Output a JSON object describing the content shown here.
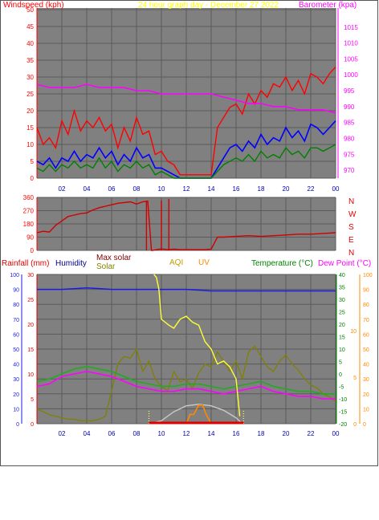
{
  "colors": {
    "plot_bg": "#808080",
    "grid": "#5a5a5a",
    "frame": "#4d4d4d",
    "gust": "#ff0000",
    "wind_avg": "#008000",
    "wind_10min": "#0000ff",
    "barometer": "#ff00ff",
    "direction": "#d00000",
    "title_yellow": "#ffff00",
    "humidity": "#1a1ae6",
    "temperature": "#22aa22",
    "dewpoint": "#ff00ff",
    "solar": "#808000",
    "max_solar": "#c8c8c8",
    "aqi": "#ffff33",
    "uv": "#ff8800",
    "rain_axis": "#e00000",
    "right_axis_green": "#008000",
    "right_axis_orange": "#ff8800"
  },
  "chart_data": [
    {
      "type": "line",
      "id": "wind",
      "title": "24 hour graph day - December 27 2022",
      "ylabel_left": "Windspeed (kph)",
      "ylabel_right": "Barometer (kpa)",
      "yticks_left": [
        "0",
        "5",
        "10",
        "15",
        "20",
        "25",
        "30",
        "35",
        "40",
        "45",
        "50"
      ],
      "yticks_right": [
        "970",
        "975",
        "980",
        "985",
        "990",
        "995",
        "1000",
        "1005",
        "1010",
        "1015"
      ],
      "ylim_left": [
        0,
        50
      ],
      "ylim_right": [
        967.5,
        1021
      ],
      "xticks": [
        "02",
        "04",
        "06",
        "08",
        "10",
        "12",
        "14",
        "16",
        "18",
        "20",
        "22",
        "00"
      ],
      "xlim": [
        0,
        24
      ],
      "grid": true,
      "series": [
        {
          "key": "gust",
          "x": [
            0,
            0.5,
            1,
            1.5,
            2,
            2.5,
            3,
            3.5,
            4,
            4.5,
            5,
            5.5,
            6,
            6.5,
            7,
            7.5,
            8,
            8.5,
            9,
            9.5,
            10,
            10.5,
            11,
            11.5,
            12,
            12.5,
            13,
            13.5,
            14,
            14.5,
            15,
            15.5,
            16,
            16.5,
            17,
            17.5,
            18,
            18.5,
            19,
            19.5,
            20,
            20.5,
            21,
            21.5,
            22,
            22.5,
            23,
            23.5,
            24
          ],
          "values": [
            15,
            10,
            12,
            9,
            17,
            13,
            20,
            14,
            17,
            15,
            18,
            14,
            16,
            9,
            15,
            11,
            18,
            13,
            14,
            7,
            8,
            5,
            4,
            1,
            1,
            1,
            1,
            1,
            1,
            15,
            18,
            21,
            22,
            19,
            25,
            22,
            26,
            24,
            28,
            27,
            30,
            26,
            29,
            25,
            31,
            30,
            28,
            31,
            33
          ]
        },
        {
          "key": "wind_10min",
          "x": [
            0,
            0.5,
            1,
            1.5,
            2,
            2.5,
            3,
            3.5,
            4,
            4.5,
            5,
            5.5,
            6,
            6.5,
            7,
            7.5,
            8,
            8.5,
            9,
            9.5,
            10,
            10.5,
            11,
            11.5,
            12,
            12.5,
            13,
            13.5,
            14,
            14.5,
            15,
            15.5,
            16,
            16.5,
            17,
            17.5,
            18,
            18.5,
            19,
            19.5,
            20,
            20.5,
            21,
            21.5,
            22,
            22.5,
            23,
            23.5,
            24
          ],
          "values": [
            5,
            4,
            6,
            3,
            6,
            5,
            8,
            5,
            7,
            6,
            9,
            6,
            8,
            4,
            7,
            5,
            9,
            6,
            7,
            3,
            3,
            2,
            1,
            0,
            0,
            0,
            0,
            0,
            0,
            3,
            6,
            9,
            10,
            8,
            11,
            9,
            13,
            10,
            12,
            11,
            15,
            12,
            14,
            11,
            16,
            15,
            13,
            15,
            17
          ]
        },
        {
          "key": "wind_avg",
          "x": [
            0,
            0.5,
            1,
            1.5,
            2,
            2.5,
            3,
            3.5,
            4,
            4.5,
            5,
            5.5,
            6,
            6.5,
            7,
            7.5,
            8,
            8.5,
            9,
            9.5,
            10,
            10.5,
            11,
            11.5,
            12,
            12.5,
            13,
            13.5,
            14,
            14.5,
            15,
            15.5,
            16,
            16.5,
            17,
            17.5,
            18,
            18.5,
            19,
            19.5,
            20,
            20.5,
            21,
            21.5,
            22,
            22.5,
            23,
            23.5,
            24
          ],
          "values": [
            3,
            2,
            4,
            2,
            4,
            3,
            5,
            3,
            4,
            3,
            6,
            3,
            5,
            2,
            4,
            3,
            5,
            3,
            4,
            1,
            2,
            1,
            0,
            0,
            0,
            0,
            0,
            0,
            0,
            2,
            4,
            5,
            6,
            5,
            7,
            5,
            8,
            6,
            7,
            6,
            9,
            7,
            8,
            6,
            9,
            9,
            8,
            9,
            10
          ]
        },
        {
          "key": "barometer",
          "axis": "right",
          "x": [
            0,
            1,
            2,
            3,
            4,
            5,
            6,
            7,
            8,
            9,
            10,
            11,
            12,
            13,
            14,
            15,
            16,
            17,
            18,
            19,
            20,
            21,
            22,
            23,
            24
          ],
          "values": [
            997,
            996,
            996,
            996,
            997,
            996,
            996,
            996,
            995,
            995,
            994,
            994,
            994,
            994,
            994,
            993,
            992,
            991,
            991,
            990,
            990,
            989,
            989,
            989,
            988
          ]
        }
      ]
    },
    {
      "type": "line",
      "id": "direction",
      "yticks": [
        "0",
        "90",
        "180",
        "270",
        "360"
      ],
      "ylim": [
        0,
        360
      ],
      "compass_labels": [
        "N",
        "W",
        "S",
        "E",
        "N"
      ],
      "xlim": [
        0,
        24
      ],
      "grid": true,
      "x": [
        0,
        0.5,
        1,
        1.5,
        2,
        2.5,
        3,
        3.5,
        4,
        4.5,
        5,
        5.5,
        6,
        6.5,
        7,
        7.5,
        8,
        8.5,
        8.9,
        9.2,
        9.3,
        9.6,
        10,
        10.5,
        11,
        11.5,
        12,
        12.5,
        13,
        13.5,
        14,
        14.5,
        15,
        16,
        17,
        18,
        19,
        20,
        21,
        22,
        23,
        24
      ],
      "values": [
        120,
        130,
        125,
        170,
        200,
        230,
        240,
        250,
        255,
        275,
        290,
        300,
        310,
        320,
        325,
        330,
        315,
        330,
        335,
        0,
        0,
        5,
        10,
        5,
        8,
        5,
        5,
        5,
        5,
        5,
        8,
        90,
        90,
        95,
        100,
        95,
        100,
        105,
        110,
        110,
        115,
        120
      ]
    },
    {
      "type": "line",
      "id": "environment",
      "labels": {
        "rainfall": "Rainfall (mm)",
        "humidity": "Humidity",
        "max_solar": "Max solar",
        "solar": "Solar",
        "aqi": "AQI",
        "uv": "UV",
        "temperature": "Temperature (°C)",
        "dewpoint": "Dew Point (°C)"
      },
      "yticks_humidity": [
        "0",
        "10",
        "20",
        "30",
        "40",
        "50",
        "60",
        "70",
        "80",
        "90",
        "100"
      ],
      "yticks_rain": [
        "0",
        "5",
        "10",
        "15",
        "20",
        "25",
        "30"
      ],
      "yticks_temp": [
        "-20",
        "-15",
        "-10",
        "-5",
        "0",
        "5",
        "10",
        "15",
        "20",
        "25",
        "30",
        "35",
        "40"
      ],
      "yticks_uv": [
        "0",
        "5",
        "10"
      ],
      "yticks_solar": [
        "0",
        "10",
        "20",
        "30",
        "40",
        "50",
        "60",
        "70",
        "80",
        "90",
        "100"
      ],
      "xticks": [
        "02",
        "04",
        "06",
        "08",
        "10",
        "12",
        "14",
        "16",
        "18",
        "20",
        "22",
        "00"
      ],
      "xlim": [
        0,
        24
      ],
      "grid": true,
      "series": [
        {
          "key": "humidity",
          "x": [
            0,
            2,
            4,
            6,
            8,
            10,
            12,
            14,
            16,
            18,
            20,
            22,
            24
          ],
          "values": [
            90,
            90,
            91,
            90,
            90,
            90,
            90,
            89,
            89,
            89,
            89,
            89,
            89
          ]
        },
        {
          "key": "temperature",
          "x": [
            0,
            1,
            2,
            3,
            4,
            5,
            6,
            7,
            8,
            9,
            10,
            11,
            12,
            13,
            14,
            15,
            16,
            17,
            18,
            19,
            20,
            21,
            22,
            23,
            24
          ],
          "values": [
            -3,
            -2,
            0,
            2,
            3,
            2,
            1,
            -1,
            -3,
            -4,
            -5,
            -5,
            -4,
            -4,
            -5,
            -6,
            -5,
            -4,
            -3,
            -5,
            -6,
            -7,
            -7,
            -8,
            -8
          ]
        },
        {
          "key": "dewpoint",
          "x": [
            0,
            1,
            2,
            3,
            4,
            5,
            6,
            7,
            8,
            9,
            10,
            11,
            12,
            13,
            14,
            15,
            16,
            17,
            18,
            19,
            20,
            21,
            22,
            23,
            24
          ],
          "values": [
            -5,
            -4,
            -1,
            0,
            1,
            0,
            -1,
            -3,
            -5,
            -6,
            -7,
            -7,
            -6,
            -6,
            -7,
            -8,
            -7,
            -6,
            -5,
            -7,
            -8,
            -9,
            -9,
            -10,
            -10
          ]
        },
        {
          "key": "solar",
          "x": [
            0,
            0.5,
            1,
            1.5,
            2,
            2.5,
            3,
            3.5,
            4,
            4.5,
            5,
            5.5,
            6,
            6.5,
            7,
            7.5,
            8,
            8.5,
            9,
            9.5,
            10,
            10.5,
            11,
            11.5,
            12,
            12.5,
            13,
            13.5,
            14,
            14.5,
            15,
            15.5,
            16,
            16.5,
            17,
            17.5,
            18,
            18.5,
            19,
            19.5,
            20,
            20.5,
            21,
            21.5,
            22,
            22.5,
            23,
            23.5,
            24
          ],
          "values": [
            10,
            8,
            6,
            5,
            4,
            3,
            3,
            2,
            2,
            2,
            3,
            5,
            22,
            40,
            45,
            44,
            50,
            35,
            42,
            30,
            25,
            22,
            35,
            28,
            30,
            24,
            34,
            40,
            38,
            48,
            42,
            35,
            42,
            30,
            48,
            52,
            45,
            38,
            35,
            42,
            46,
            40,
            36,
            30,
            26,
            24,
            20,
            18,
            15
          ]
        },
        {
          "key": "max_solar",
          "x": [
            9,
            10,
            11,
            12,
            13,
            14,
            15,
            16,
            16.5
          ],
          "values": [
            0,
            2,
            8,
            12,
            13,
            12,
            9,
            4,
            0
          ]
        },
        {
          "key": "aqi",
          "x": [
            9.4,
            9.6,
            9.8,
            10,
            10.3,
            10.6,
            11,
            11.5,
            12,
            12.5,
            13,
            13.5,
            14,
            14.5,
            15,
            15.5,
            16,
            16.3
          ],
          "values": [
            100,
            98,
            90,
            70,
            68,
            66,
            64,
            70,
            72,
            68,
            66,
            55,
            50,
            40,
            42,
            38,
            30,
            5
          ]
        },
        {
          "key": "uv",
          "x": [
            12,
            12.3,
            12.6,
            13,
            13.3,
            13.6,
            14
          ],
          "values": [
            0,
            1,
            1,
            2,
            2,
            1,
            0
          ]
        }
      ]
    }
  ]
}
